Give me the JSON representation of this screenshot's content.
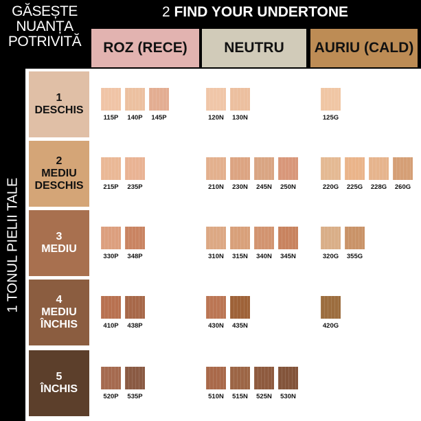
{
  "title_left": [
    "GĂSEȘTE",
    "NUANȚA",
    "POTRIVITĂ"
  ],
  "title_top": {
    "num": "2",
    "text": "FIND YOUR UNDERTONE"
  },
  "side_title": "1 TONUL PIELII TALE",
  "undertones": [
    {
      "label": "ROZ (RECE)",
      "color": "#e2b3b0"
    },
    {
      "label": "NEUTRU",
      "color": "#d1cbb9"
    },
    {
      "label": "AURIU (CALD)",
      "color": "#bd8c55"
    }
  ],
  "rows": [
    {
      "lines": [
        "1",
        "DESCHIS"
      ],
      "color": "#e0bfa6",
      "text_color": "#111",
      "groups": [
        [
          {
            "code": "115P",
            "color": "#f0c4a6"
          },
          {
            "code": "140P",
            "color": "#ecc0a0"
          },
          {
            "code": "145P",
            "color": "#e3ad92"
          }
        ],
        [
          {
            "code": "120N",
            "color": "#f0c6a8"
          },
          {
            "code": "130N",
            "color": "#ecbf9f"
          }
        ],
        [
          {
            "code": "125G",
            "color": "#f0c6a4"
          }
        ]
      ]
    },
    {
      "lines": [
        "2",
        "MEDIU",
        "DESCHIS"
      ],
      "color": "#d4a577",
      "text_color": "#111",
      "groups": [
        [
          {
            "code": "215P",
            "color": "#eab896"
          },
          {
            "code": "235P",
            "color": "#e9b394"
          }
        ],
        [
          {
            "code": "210N",
            "color": "#e3b08e"
          },
          {
            "code": "230N",
            "color": "#dca482"
          },
          {
            "code": "245N",
            "color": "#d9a583"
          },
          {
            "code": "250N",
            "color": "#d8977a"
          }
        ],
        [
          {
            "code": "220G",
            "color": "#e4b993"
          },
          {
            "code": "225G",
            "color": "#eab48a"
          },
          {
            "code": "228G",
            "color": "#e6b48d"
          },
          {
            "code": "260G",
            "color": "#d59f76"
          }
        ]
      ]
    },
    {
      "lines": [
        "3",
        "MEDIU"
      ],
      "color": "#a8704f",
      "text_color": "#fff",
      "groups": [
        [
          {
            "code": "330P",
            "color": "#dc9f7e"
          },
          {
            "code": "348P",
            "color": "#c98462"
          }
        ],
        [
          {
            "code": "310N",
            "color": "#dca884"
          },
          {
            "code": "315N",
            "color": "#d8a07a"
          },
          {
            "code": "340N",
            "color": "#d29470"
          },
          {
            "code": "345N",
            "color": "#c8835f"
          }
        ],
        [
          {
            "code": "320G",
            "color": "#d9ae88"
          },
          {
            "code": "355G",
            "color": "#c99368"
          }
        ]
      ]
    },
    {
      "lines": [
        "4",
        "MEDIU",
        "ÎNCHIS"
      ],
      "color": "#8b5d40",
      "text_color": "#fff",
      "groups": [
        [
          {
            "code": "410P",
            "color": "#b87150"
          },
          {
            "code": "438P",
            "color": "#a76849"
          }
        ],
        [
          {
            "code": "430N",
            "color": "#bb7654"
          },
          {
            "code": "435N",
            "color": "#9e6238"
          }
        ],
        [
          {
            "code": "420G",
            "color": "#9c6d3e"
          }
        ]
      ]
    },
    {
      "lines": [
        "5",
        "ÎNCHIS"
      ],
      "color": "#5c3f2b",
      "text_color": "#fff",
      "groups": [
        [
          {
            "code": "520P",
            "color": "#a56a4f"
          },
          {
            "code": "535P",
            "color": "#8a5a43"
          }
        ],
        [
          {
            "code": "510N",
            "color": "#a9694a"
          },
          {
            "code": "515N",
            "color": "#9c6545"
          },
          {
            "code": "525N",
            "color": "#8e5a3e"
          },
          {
            "code": "530N",
            "color": "#83543a"
          }
        ],
        []
      ]
    }
  ]
}
